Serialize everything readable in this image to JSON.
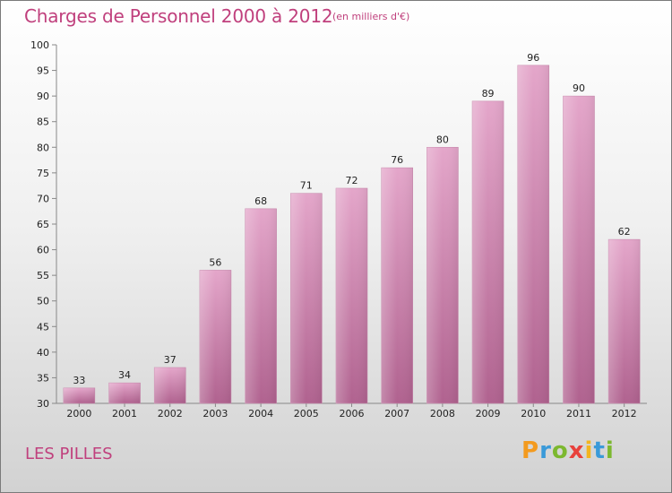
{
  "header": {
    "title": "Charges de Personnel 2000 à 2012",
    "unit": "(en milliers d'€)"
  },
  "footer": {
    "location": "LES PILLES",
    "logo_letters": [
      "P",
      "r",
      "o",
      "x",
      "i",
      "t",
      "i"
    ]
  },
  "chart_data": {
    "type": "bar",
    "title": "Charges de Personnel 2000 à 2012",
    "subtitle": "(en milliers d'€)",
    "categories": [
      "2000",
      "2001",
      "2002",
      "2003",
      "2004",
      "2005",
      "2006",
      "2007",
      "2008",
      "2009",
      "2010",
      "2011",
      "2012"
    ],
    "values": [
      33,
      34,
      37,
      56,
      68,
      71,
      72,
      76,
      80,
      89,
      96,
      90,
      62
    ],
    "ylim": [
      30,
      100
    ],
    "yticks": [
      30,
      35,
      40,
      45,
      50,
      55,
      60,
      65,
      70,
      75,
      80,
      85,
      90,
      95,
      100
    ],
    "grid": false,
    "bar_color_top": "#e4a6ca",
    "bar_color_bottom": "#b0628f"
  }
}
